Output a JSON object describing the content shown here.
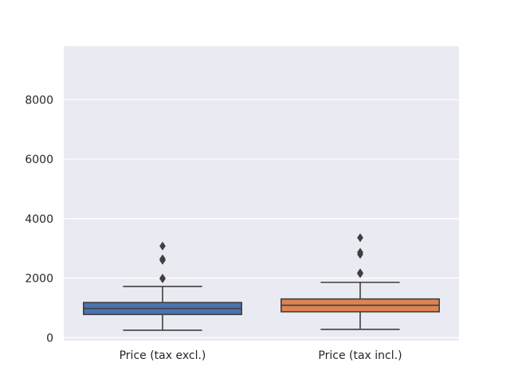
{
  "chart_data": {
    "type": "box",
    "categories": [
      "Price (tax excl.)",
      "Price (tax incl.)"
    ],
    "ylim": [
      -100,
      9800
    ],
    "yticks": [
      0,
      2000,
      4000,
      6000,
      8000
    ],
    "ytick_labels": [
      "0",
      "2000",
      "4000",
      "6000",
      "8000"
    ],
    "grid": true,
    "colors": [
      "#4c72b0",
      "#dd8452"
    ],
    "background": "#eaeaf2",
    "boxes": [
      {
        "whisker_low": 250,
        "q1": 780,
        "median": 980,
        "q3": 1180,
        "whisker_high": 1720,
        "outliers": [
          1980,
          2000,
          2600,
          2650,
          3080
        ]
      },
      {
        "whisker_low": 280,
        "q1": 870,
        "median": 1090,
        "q3": 1300,
        "whisker_high": 1860,
        "outliers": [
          2150,
          2180,
          2800,
          2870,
          3360
        ]
      }
    ]
  }
}
